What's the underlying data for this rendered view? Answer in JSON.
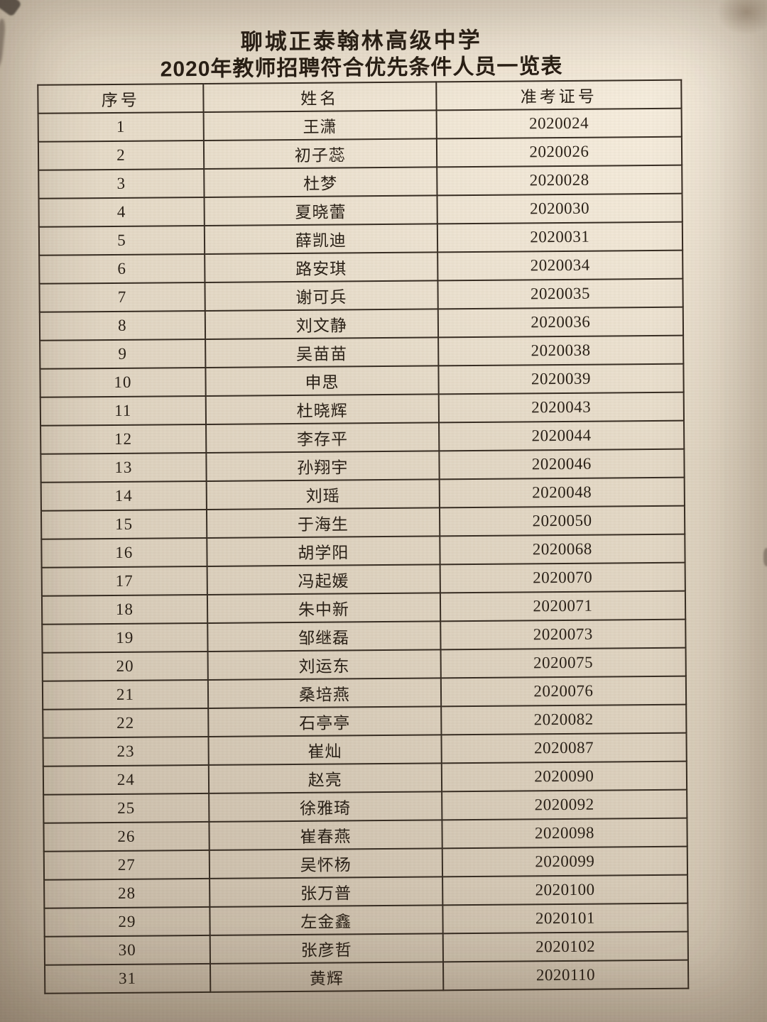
{
  "document": {
    "title_line1": "聊城正泰翰林高级中学",
    "title_line2": "2020年教师招聘符合优先条件人员一览表"
  },
  "table": {
    "headers": {
      "no": "序号",
      "name": "姓名",
      "number": "准考证号"
    },
    "rows": [
      {
        "no": "1",
        "name": "王潇",
        "number": "2020024"
      },
      {
        "no": "2",
        "name": "初子蕊",
        "number": "2020026"
      },
      {
        "no": "3",
        "name": "杜梦",
        "number": "2020028"
      },
      {
        "no": "4",
        "name": "夏晓蕾",
        "number": "2020030"
      },
      {
        "no": "5",
        "name": "薛凯迪",
        "number": "2020031"
      },
      {
        "no": "6",
        "name": "路安琪",
        "number": "2020034"
      },
      {
        "no": "7",
        "name": "谢可兵",
        "number": "2020035"
      },
      {
        "no": "8",
        "name": "刘文静",
        "number": "2020036"
      },
      {
        "no": "9",
        "name": "吴苗苗",
        "number": "2020038"
      },
      {
        "no": "10",
        "name": "申思",
        "number": "2020039"
      },
      {
        "no": "11",
        "name": "杜晓辉",
        "number": "2020043"
      },
      {
        "no": "12",
        "name": "李存平",
        "number": "2020044"
      },
      {
        "no": "13",
        "name": "孙翔宇",
        "number": "2020046"
      },
      {
        "no": "14",
        "name": "刘瑶",
        "number": "2020048"
      },
      {
        "no": "15",
        "name": "于海生",
        "number": "2020050"
      },
      {
        "no": "16",
        "name": "胡学阳",
        "number": "2020068"
      },
      {
        "no": "17",
        "name": "冯起媛",
        "number": "2020070"
      },
      {
        "no": "18",
        "name": "朱中新",
        "number": "2020071"
      },
      {
        "no": "19",
        "name": "邹继磊",
        "number": "2020073"
      },
      {
        "no": "20",
        "name": "刘运东",
        "number": "2020075"
      },
      {
        "no": "21",
        "name": "桑培燕",
        "number": "2020076"
      },
      {
        "no": "22",
        "name": "石亭亭",
        "number": "2020082"
      },
      {
        "no": "23",
        "name": "崔灿",
        "number": "2020087"
      },
      {
        "no": "24",
        "name": "赵亮",
        "number": "2020090"
      },
      {
        "no": "25",
        "name": "徐雅琦",
        "number": "2020092"
      },
      {
        "no": "26",
        "name": "崔春燕",
        "number": "2020098"
      },
      {
        "no": "27",
        "name": "吴怀杨",
        "number": "2020099"
      },
      {
        "no": "28",
        "name": "张万普",
        "number": "2020100"
      },
      {
        "no": "29",
        "name": "左金鑫",
        "number": "2020101"
      },
      {
        "no": "30",
        "name": "张彦哲",
        "number": "2020102"
      },
      {
        "no": "31",
        "name": "黄辉",
        "number": "2020110"
      }
    ]
  }
}
